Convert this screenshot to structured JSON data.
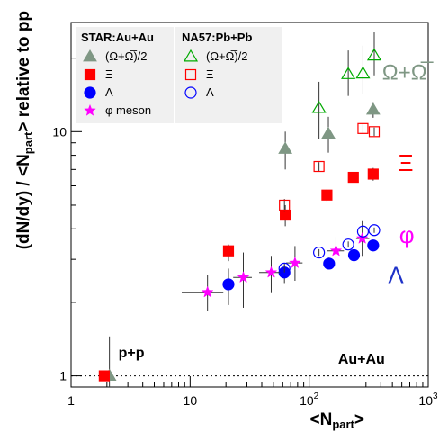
{
  "chart_data": {
    "type": "scatter",
    "title": "",
    "xlabel": "<N",
    "xlabel_sub": "part",
    "xlabel_end": ">",
    "ylabel": "(dN/dy) / <N",
    "ylabel_sub": "part",
    "ylabel_end": "> relative to pp",
    "x_scale": "log",
    "y_scale": "log",
    "xlim": [
      1,
      1000
    ],
    "ylim": [
      0.9,
      28
    ],
    "x_ticks": [
      {
        "value": 1,
        "label": "1"
      },
      {
        "value": 10,
        "label": "10"
      },
      {
        "value": 100,
        "label": "10",
        "sup": "2"
      },
      {
        "value": 1000,
        "label": "10",
        "sup": "3"
      }
    ],
    "y_ticks": [
      {
        "value": 1,
        "label": "1"
      },
      {
        "value": 10,
        "label": "10"
      }
    ],
    "reference_line": 1,
    "legend_star": {
      "title": "STAR:Au+Au",
      "entries": [
        "(Ω+Ω̅)/2",
        "Ξ",
        "Λ",
        "φ meson"
      ]
    },
    "legend_na57": {
      "title": "NA57:Pb+Pb",
      "entries": [
        "(Ω+Ω̅)/2",
        "Ξ",
        "Λ"
      ]
    },
    "annotations": [
      {
        "text": "p+p",
        "x": 2.5,
        "y": 1.19,
        "color": "#000000"
      },
      {
        "text": "Au+Au",
        "x": 175,
        "y": 1.12,
        "color": "#000000"
      },
      {
        "text": "Ω+Ω̅",
        "x": 410,
        "y": 16.3,
        "color": "#7f9784"
      },
      {
        "text": "Ξ",
        "x": 560,
        "y": 6.9,
        "color": "#ff0000"
      },
      {
        "text": "φ",
        "x": 570,
        "y": 3.5,
        "color": "#ff00ff"
      },
      {
        "text": "Λ",
        "x": 460,
        "y": 2.4,
        "color": "#1e32c8"
      }
    ],
    "colors": {
      "omega": "#7f9784",
      "xi": "#ff0000",
      "lambda": "#0000ff",
      "phi": "#ff00ff"
    },
    "series": [
      {
        "name": "STAR (Ω+Ω̅)/2",
        "marker": "triangle-filled",
        "color": "#7f9784",
        "points": [
          {
            "x": 2.1,
            "y": 1.0,
            "ylo": 0.9,
            "yhi": 1.45
          },
          {
            "x": 63,
            "y": 8.5,
            "ylo": 7.0,
            "yhi": 10.0
          },
          {
            "x": 145,
            "y": 9.8,
            "ylo": 8.2,
            "yhi": 11.5
          },
          {
            "x": 345,
            "y": 12.3,
            "ylo": 11.4,
            "yhi": 13.2
          }
        ]
      },
      {
        "name": "STAR Ξ",
        "marker": "square-filled",
        "color": "#ff0000",
        "points": [
          {
            "x": 1.9,
            "y": 1.0,
            "ylo": 0.97,
            "yhi": 1.03
          },
          {
            "x": 21,
            "y": 3.25,
            "ylo": 2.95,
            "yhi": 3.45
          },
          {
            "x": 63,
            "y": 4.55,
            "ylo": 4.1,
            "yhi": 5.0
          },
          {
            "x": 141,
            "y": 5.5,
            "ylo": 5.2,
            "yhi": 5.8
          },
          {
            "x": 235,
            "y": 6.5,
            "ylo": 6.2,
            "yhi": 6.8
          },
          {
            "x": 345,
            "y": 6.7,
            "ylo": 6.3,
            "yhi": 7.1
          }
        ]
      },
      {
        "name": "STAR Λ",
        "marker": "circle-filled",
        "color": "#0000ff",
        "points": [
          {
            "x": 21,
            "y": 2.37,
            "ylo": 1.95,
            "yhi": 2.75
          },
          {
            "x": 62,
            "y": 2.65,
            "ylo": 2.4,
            "yhi": 2.9
          },
          {
            "x": 147,
            "y": 2.88,
            "ylo": 2.75,
            "yhi": 3.05
          },
          {
            "x": 238,
            "y": 3.12,
            "ylo": 2.95,
            "yhi": 3.3
          },
          {
            "x": 345,
            "y": 3.42,
            "ylo": 3.25,
            "yhi": 3.6
          }
        ]
      },
      {
        "name": "φ meson",
        "marker": "star",
        "color": "#ff00ff",
        "points": [
          {
            "x": 14,
            "y": 2.2,
            "ylo": 1.85,
            "yhi": 2.6,
            "xlo": 8.5,
            "xhi": 19
          },
          {
            "x": 28,
            "y": 2.53,
            "ylo": 1.9,
            "yhi": 3.2,
            "xlo": 23,
            "xhi": 33
          },
          {
            "x": 48,
            "y": 2.65,
            "ylo": 2.2,
            "yhi": 3.1,
            "xlo": 38,
            "xhi": 58
          },
          {
            "x": 76,
            "y": 2.9,
            "ylo": 2.45,
            "yhi": 3.4,
            "xlo": 64,
            "xhi": 88
          },
          {
            "x": 168,
            "y": 3.25,
            "ylo": 2.8,
            "yhi": 3.7,
            "xlo": 140,
            "xhi": 196
          },
          {
            "x": 279,
            "y": 3.65,
            "ylo": 3.1,
            "yhi": 4.3,
            "xlo": 248,
            "xhi": 320
          }
        ]
      },
      {
        "name": "NA57 (Ω+Ω̅)/2",
        "marker": "triangle-open",
        "color": "#00aa00",
        "points": [
          {
            "x": 121,
            "y": 12.5,
            "ylo": 9.3,
            "yhi": 16.0
          },
          {
            "x": 213,
            "y": 17.2,
            "ylo": 14.0,
            "yhi": 21.5
          },
          {
            "x": 283,
            "y": 17.3,
            "ylo": 14.2,
            "yhi": 22.5
          },
          {
            "x": 352,
            "y": 20.5,
            "ylo": 17.0,
            "yhi": 25.5
          }
        ]
      },
      {
        "name": "NA57 Ξ",
        "marker": "square-open",
        "color": "#ff0000",
        "points": [
          {
            "x": 62,
            "y": 5.0,
            "ylo": 4.7,
            "yhi": 5.3
          },
          {
            "x": 121,
            "y": 7.2,
            "ylo": 6.9,
            "yhi": 7.5
          },
          {
            "x": 283,
            "y": 10.3,
            "ylo": 9.8,
            "yhi": 10.8
          },
          {
            "x": 352,
            "y": 10.0,
            "ylo": 9.6,
            "yhi": 10.4
          }
        ]
      },
      {
        "name": "NA57 Λ",
        "marker": "circle-open",
        "color": "#0000ff",
        "points": [
          {
            "x": 62,
            "y": 2.75,
            "ylo": 2.65,
            "yhi": 2.85
          },
          {
            "x": 121,
            "y": 3.2,
            "ylo": 3.1,
            "yhi": 3.3
          },
          {
            "x": 213,
            "y": 3.45,
            "ylo": 3.35,
            "yhi": 3.55
          },
          {
            "x": 283,
            "y": 3.9,
            "ylo": 3.8,
            "yhi": 4.0
          },
          {
            "x": 352,
            "y": 3.95,
            "ylo": 3.85,
            "yhi": 4.05
          }
        ]
      }
    ]
  }
}
